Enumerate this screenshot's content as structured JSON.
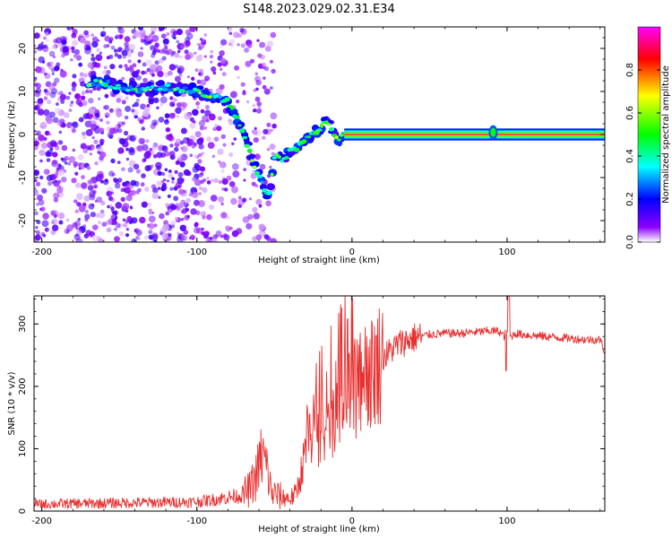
{
  "figure": {
    "title": "S148.2023.029.02.31.E34"
  },
  "chart_data": [
    {
      "type": "heatmap",
      "xlabel": "Height of straight line (km)",
      "ylabel": "Frequency (Hz)",
      "xlim": [
        -205,
        163
      ],
      "ylim": [
        -25,
        25
      ],
      "xticks": [
        -200,
        -100,
        0,
        100
      ],
      "yticks": [
        -20,
        -10,
        0,
        10,
        20
      ],
      "ridge": {
        "name": "dominant frequency",
        "x": [
          -170,
          -160,
          -150,
          -140,
          -130,
          -120,
          -110,
          -100,
          -95,
          -90,
          -85,
          -80,
          -77,
          -74,
          -71,
          -68,
          -65,
          -62,
          -59,
          -56,
          -53,
          -50,
          -45,
          -40,
          -35,
          -30,
          -25,
          -20,
          -17,
          -14,
          -11,
          -8,
          -5,
          0,
          20,
          40,
          60,
          80,
          88,
          90,
          92,
          94,
          100,
          120,
          140,
          163
        ],
        "y": [
          12,
          12,
          11,
          10.5,
          10.5,
          11,
          10.5,
          10,
          9.5,
          9,
          8.5,
          7.5,
          5.5,
          3.5,
          1,
          -2,
          -5,
          -8,
          -10,
          -13,
          -14,
          -5,
          -6,
          -4,
          -3,
          -1,
          0,
          1.5,
          3.5,
          2,
          0,
          -1,
          0,
          0,
          0,
          0,
          0,
          0,
          0,
          0.5,
          0.5,
          0,
          0,
          0,
          0,
          0
        ]
      },
      "colorbar": {
        "label": "Normalized spectral amplitude",
        "range": [
          0,
          1
        ],
        "ticks": [
          0.0,
          0.2,
          0.4,
          0.6,
          0.8
        ],
        "colors": [
          "#ffffff",
          "#8c00ff",
          "#0000ff",
          "#00ffff",
          "#00ff00",
          "#ffff00",
          "#ff0000",
          "#ff00ff"
        ]
      }
    },
    {
      "type": "line",
      "xlabel": "Height of straight line (km)",
      "ylabel": "SNR (10 * v/v)",
      "xlim": [
        -205,
        163
      ],
      "ylim": [
        0,
        345
      ],
      "xticks": [
        -200,
        -100,
        0,
        100
      ],
      "yticks": [
        0,
        100,
        200,
        300
      ],
      "color": "#e83030",
      "series": [
        {
          "x": [
            -205,
            -180,
            -150,
            -120,
            -100,
            -90,
            -80,
            -72,
            -66,
            -62,
            -58,
            -55,
            -52,
            -48,
            -44,
            -40,
            -36,
            -33,
            -30,
            -27,
            -24,
            -20,
            -15,
            -10,
            -5,
            0,
            5,
            10,
            15,
            20,
            25,
            30,
            40,
            50,
            60,
            70,
            80,
            90,
            95,
            98,
            100,
            101,
            102,
            105,
            110,
            120,
            130,
            140,
            150,
            160,
            163
          ],
          "y": [
            11,
            12,
            13,
            14,
            15,
            18,
            22,
            25,
            35,
            55,
            90,
            70,
            30,
            25,
            22,
            20,
            28,
            60,
            95,
            110,
            120,
            130,
            150,
            165,
            175,
            185,
            200,
            215,
            232,
            245,
            258,
            268,
            278,
            283,
            285,
            285,
            287,
            289,
            288,
            280,
            290,
            300,
            278,
            285,
            283,
            281,
            279,
            277,
            275,
            275,
            255
          ]
        }
      ]
    }
  ]
}
